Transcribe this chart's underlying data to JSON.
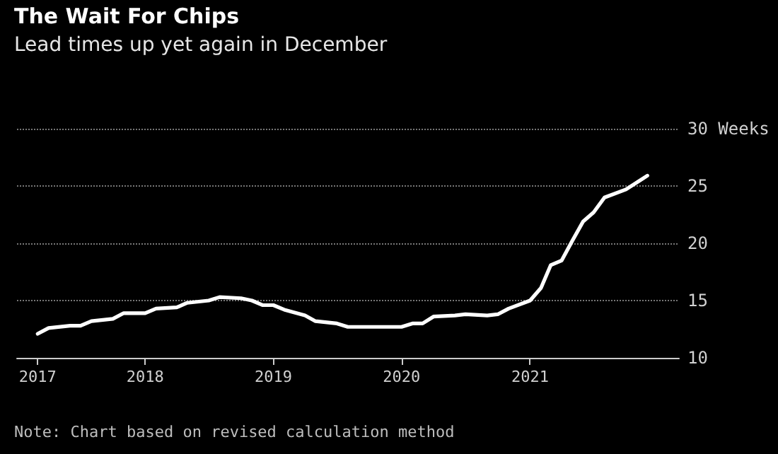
{
  "chart_data": {
    "type": "line",
    "title": "The Wait For Chips",
    "subtitle": "Lead times up yet again in December",
    "annotations": [
      "Note: Chart based on revised calculation method"
    ],
    "x": [
      "2017-03",
      "2017-04",
      "2017-06",
      "2017-07",
      "2017-08",
      "2017-10",
      "2017-11",
      "2018-01",
      "2018-02",
      "2018-04",
      "2018-05",
      "2018-07",
      "2018-08",
      "2018-10",
      "2018-11",
      "2018-12",
      "2019-01",
      "2019-02",
      "2019-04",
      "2019-05",
      "2019-07",
      "2019-08",
      "2019-09",
      "2020-01",
      "2020-02",
      "2020-03",
      "2020-04",
      "2020-06",
      "2020-07",
      "2020-09",
      "2020-10",
      "2020-11",
      "2021-01",
      "2021-02",
      "2021-03",
      "2021-04",
      "2021-05",
      "2021-06",
      "2021-07",
      "2021-08",
      "2021-10",
      "2021-12"
    ],
    "series": [
      {
        "color": "#ffffff",
        "values": [
          12.1,
          12.6,
          12.8,
          12.8,
          13.2,
          13.4,
          13.9,
          13.9,
          14.3,
          14.4,
          14.8,
          15.0,
          15.3,
          15.2,
          15.0,
          14.6,
          14.6,
          14.2,
          13.7,
          13.2,
          13.0,
          12.7,
          12.7,
          12.7,
          13.0,
          13.0,
          13.6,
          13.7,
          13.8,
          13.7,
          13.8,
          14.3,
          15.0,
          16.1,
          18.1,
          18.5,
          20.2,
          21.9,
          22.7,
          24.0,
          24.7,
          25.9
        ]
      }
    ],
    "xlim": [
      "2017-01",
      "2022-03"
    ],
    "xticks": [
      {
        "value": "2017-03",
        "label": "2017"
      },
      {
        "value": "2018-01",
        "label": "2018"
      },
      {
        "value": "2019-01",
        "label": "2019"
      },
      {
        "value": "2020-01",
        "label": "2020"
      },
      {
        "value": "2021-01",
        "label": "2021"
      }
    ],
    "ylim": [
      10,
      30
    ],
    "yticks": [
      10,
      15,
      20,
      25,
      {
        "value": 30,
        "label": "30 Weeks"
      }
    ],
    "grid": "y",
    "marker": "none",
    "line_style": "solid"
  }
}
